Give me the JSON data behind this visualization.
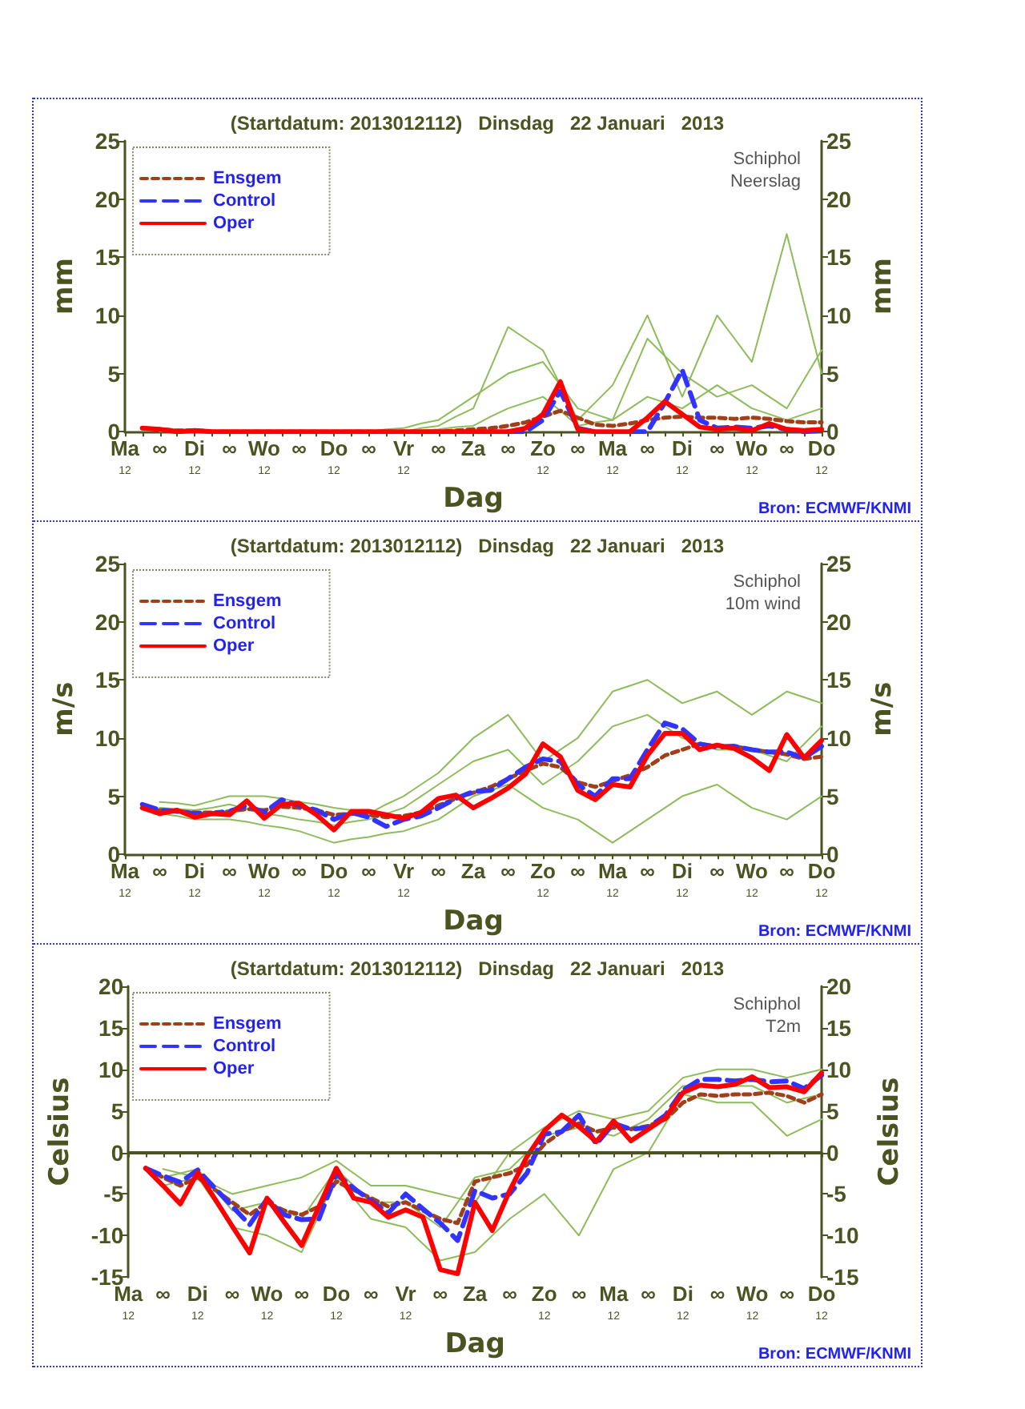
{
  "chart_data": [
    {
      "type": "line",
      "title": "(Startdatum: 2013012112)   Dinsdag   22 Januari   2013",
      "xlabel": "Dag",
      "ylabel": "mm",
      "y2label": "mm",
      "annotations": [
        "Schiphol",
        "Neerslag",
        "Bron: ECMWF/KNMI"
      ],
      "categories": [
        "Ma\n12",
        null,
        "∞",
        null,
        "Di\n12",
        null,
        "∞",
        null,
        "Wo\n12",
        null,
        "∞",
        null,
        "Do\n12",
        null,
        "∞",
        null,
        "Vr\n12",
        null,
        "∞",
        null,
        "Za",
        null,
        "∞",
        null,
        "Zo\n12",
        null,
        "∞",
        null,
        "Ma\n12",
        null,
        "∞",
        null,
        "Di\n12",
        null,
        "∞",
        null,
        "Wo\n12",
        null,
        "∞",
        null,
        "Do\n12"
      ],
      "ylim": [
        0,
        25
      ],
      "yticks": [
        0,
        5,
        10,
        15,
        20,
        25
      ],
      "y2lim": [
        0,
        25
      ],
      "y2ticks": [
        0,
        5,
        10,
        15,
        20,
        25
      ],
      "grid": false,
      "legend": "top left",
      "series": [
        {
          "color": "#8fbc5a",
          "line_style": "solid",
          "values": [
            null,
            null,
            0.3,
            0.2,
            0.1,
            0,
            0,
            0,
            0,
            0,
            0,
            0,
            0,
            0,
            0,
            0,
            0,
            0.3,
            0.5,
            1.3,
            2,
            5.5,
            9,
            8,
            7,
            4,
            1,
            2.5,
            4,
            7,
            10,
            6.5,
            3,
            6.5,
            10,
            8,
            6,
            11.5,
            17,
            11,
            5
          ]
        },
        {
          "color": "#8fbc5a",
          "line_style": "solid",
          "values": [
            null,
            null,
            0.2,
            0.1,
            0,
            0,
            0,
            0,
            0,
            0,
            0,
            0,
            0,
            0,
            0,
            0.2,
            0.3,
            0.7,
            1,
            2,
            3,
            4,
            5,
            5.5,
            6,
            4,
            2,
            1.5,
            1,
            4.5,
            8,
            6.5,
            5,
            4,
            3,
            3.5,
            4,
            3,
            2,
            4.5,
            7
          ]
        },
        {
          "color": "#8fbc5a",
          "line_style": "solid",
          "values": [
            null,
            null,
            0,
            0,
            0,
            0,
            0,
            0,
            0,
            0,
            0,
            0,
            0,
            0,
            0,
            0,
            0,
            0.1,
            0.2,
            0.4,
            0.5,
            1.3,
            2,
            2.5,
            3,
            1.8,
            0.5,
            0.8,
            1,
            2,
            3,
            2.5,
            2,
            3,
            4,
            3,
            2,
            1.5,
            1,
            1.5,
            2
          ]
        },
        {
          "name": "Ensgem",
          "color": "#a0401a",
          "line_style": "dotted",
          "values": [
            null,
            0.3,
            0.2,
            0.1,
            0.1,
            0,
            0,
            0,
            0,
            0,
            0,
            0,
            0,
            0,
            0,
            0,
            0,
            0,
            0,
            0.1,
            0.2,
            0.3,
            0.5,
            0.8,
            1.3,
            1.8,
            1.2,
            0.6,
            0.5,
            0.7,
            1.0,
            1.2,
            1.3,
            1.2,
            1.2,
            1.1,
            1.2,
            1.1,
            0.9,
            0.8,
            0.8
          ]
        },
        {
          "name": "Control",
          "color": "#3333ff",
          "line_style": "dashed",
          "values": [
            null,
            null,
            null,
            null,
            null,
            null,
            null,
            null,
            null,
            null,
            null,
            null,
            null,
            null,
            null,
            null,
            null,
            null,
            null,
            null,
            null,
            null,
            0,
            0,
            1,
            3.5,
            0.3,
            0,
            null,
            0,
            0,
            2.5,
            5.3,
            1.0,
            0.3,
            0.4,
            0.3,
            0.5,
            0.2,
            0,
            0.1
          ]
        },
        {
          "name": "Oper",
          "color": "#ff0000",
          "line_style": "solid",
          "values": [
            null,
            0.3,
            0.2,
            0,
            0.1,
            0,
            0,
            0,
            0,
            0,
            0,
            0,
            0,
            0,
            0,
            0,
            0,
            0,
            0,
            0,
            0,
            0,
            0,
            0.3,
            1.5,
            4.3,
            0.2,
            0,
            0,
            0,
            1.2,
            2.6,
            1.5,
            0.4,
            0.2,
            0.3,
            0.1,
            0.7,
            0.2,
            0.1,
            0.2
          ]
        }
      ]
    },
    {
      "type": "line",
      "title": "(Startdatum: 2013012112)   Dinsdag   22 Januari   2013",
      "xlabel": "Dag",
      "ylabel": "m/s",
      "y2label": "m/s",
      "annotations": [
        "Schiphol",
        "10m wind",
        "Bron: ECMWF/KNMI"
      ],
      "categories": [
        "Ma\n12",
        null,
        "∞",
        null,
        "Di\n12",
        null,
        "∞",
        null,
        "Wo\n12",
        null,
        "∞",
        null,
        "Do\n12",
        null,
        "∞",
        null,
        "Vr\n12",
        null,
        "∞",
        null,
        "Za",
        null,
        "∞",
        null,
        "Zo\n12",
        null,
        "∞",
        null,
        "Ma\n12",
        null,
        "∞",
        null,
        "Di\n12",
        null,
        "∞",
        null,
        "Wo\n12",
        null,
        "∞",
        null,
        "Do\n12"
      ],
      "ylim": [
        0,
        25
      ],
      "yticks": [
        0,
        5,
        10,
        15,
        20,
        25
      ],
      "y2lim": [
        0,
        25
      ],
      "y2ticks": [
        0,
        5,
        10,
        15,
        20,
        25
      ],
      "grid": false,
      "legend": "top left",
      "series": [
        {
          "color": "#8fbc5a",
          "line_style": "solid",
          "values": [
            null,
            null,
            4.5,
            4.4,
            4.2,
            4.6,
            5,
            5,
            5,
            4.8,
            4.5,
            4.3,
            4,
            3.8,
            3.5,
            4.3,
            5,
            6,
            7,
            8.5,
            10,
            11,
            12,
            10,
            8,
            9,
            10,
            12,
            14,
            14.5,
            15,
            14,
            13,
            13.5,
            14,
            13,
            12,
            13,
            14,
            13.5,
            13
          ]
        },
        {
          "color": "#8fbc5a",
          "line_style": "solid",
          "values": [
            null,
            null,
            3.5,
            3.3,
            3,
            3,
            3,
            2.8,
            2.5,
            2.3,
            2,
            1.5,
            1,
            1.3,
            1.5,
            1.8,
            2,
            2.5,
            3,
            4,
            5,
            5.5,
            6,
            5,
            4,
            3.5,
            3,
            2,
            1,
            2,
            3,
            4,
            5,
            5.5,
            6,
            5,
            4,
            3.5,
            3,
            4,
            5
          ]
        },
        {
          "color": "#8fbc5a",
          "line_style": "solid",
          "values": [
            null,
            null,
            4,
            3.9,
            3.8,
            4,
            4.3,
            3.9,
            3.5,
            3.3,
            3,
            2.8,
            2.5,
            2.8,
            3,
            3.5,
            4,
            5,
            6,
            7,
            8,
            8.5,
            9,
            7.5,
            6,
            7,
            8,
            9.5,
            11,
            11.5,
            12,
            11,
            10,
            9.5,
            9,
            9,
            9,
            8.5,
            8,
            9.5,
            11
          ]
        },
        {
          "name": "Ensgem",
          "color": "#a0401a",
          "line_style": "dotted",
          "values": [
            null,
            null,
            3.8,
            3.7,
            3.6,
            3.6,
            3.7,
            3.9,
            3.8,
            4.1,
            4.0,
            3.8,
            3.4,
            3.5,
            3.4,
            3.2,
            3.3,
            3.6,
            4.2,
            4.8,
            5.3,
            5.8,
            6.5,
            7.2,
            7.8,
            7.5,
            6.2,
            5.8,
            6.3,
            6.8,
            7.5,
            8.5,
            9.0,
            9.5,
            9.3,
            9.3,
            9.0,
            8.8,
            8.6,
            8.2,
            8.4
          ]
        },
        {
          "name": "Control",
          "color": "#3333ff",
          "line_style": "dashed",
          "values": [
            null,
            4.3,
            3.8,
            3.7,
            3.5,
            3.5,
            3.7,
            4.2,
            3.6,
            4.7,
            4.2,
            3.8,
            3.0,
            3.6,
            3.2,
            2.4,
            3.0,
            3.3,
            4.0,
            4.8,
            5.4,
            5.5,
            6.5,
            7.5,
            8.2,
            8.0,
            6.0,
            5.0,
            6.5,
            6.5,
            9.0,
            11.3,
            10.8,
            9.5,
            9.2,
            9.3,
            9.0,
            8.8,
            8.8,
            8.3,
            9.3
          ]
        },
        {
          "name": "Oper",
          "color": "#ff0000",
          "line_style": "solid",
          "values": [
            null,
            4.0,
            3.5,
            3.8,
            3.2,
            3.5,
            3.4,
            4.6,
            3.1,
            4.3,
            4.4,
            3.4,
            2.1,
            3.7,
            3.7,
            3.4,
            3.1,
            3.6,
            4.8,
            5.1,
            4.0,
            4.8,
            5.7,
            6.9,
            9.5,
            8.4,
            5.5,
            4.7,
            6.0,
            5.8,
            8.5,
            10.4,
            10.4,
            9.0,
            9.4,
            9.1,
            8.3,
            7.2,
            10.3,
            8.3,
            9.8
          ]
        }
      ]
    },
    {
      "type": "line",
      "title": "(Startdatum: 2013012112)   Dinsdag   22 Januari   2013",
      "xlabel": "Dag",
      "ylabel": "Celsius",
      "y2label": "Celsius",
      "annotations": [
        "Schiphol",
        "T2m",
        "Bron: ECMWF/KNMI"
      ],
      "categories": [
        "Ma\n12",
        null,
        "∞",
        null,
        "Di\n12",
        null,
        "∞",
        null,
        "Wo\n12",
        null,
        "∞",
        null,
        "Do\n12",
        null,
        "∞",
        null,
        "Vr\n12",
        null,
        "∞",
        null,
        "Za",
        null,
        "∞",
        null,
        "Zo\n12",
        null,
        "∞",
        null,
        "Ma\n12",
        null,
        "∞",
        null,
        "Di\n12",
        null,
        "∞",
        null,
        "Wo\n12",
        null,
        "∞",
        null,
        "Do\n12"
      ],
      "ylim": [
        -15,
        20
      ],
      "yticks": [
        -15,
        -10,
        -5,
        0,
        5,
        10,
        15,
        20
      ],
      "y2lim": [
        -15,
        20
      ],
      "y2ticks": [
        -15,
        -10,
        -5,
        0,
        5,
        10,
        15,
        20
      ],
      "grid": false,
      "legend": "top left",
      "ref_lines": [
        {
          "axis": "y",
          "value": 0,
          "color": "#4b5320"
        }
      ],
      "series": [
        {
          "color": "#8fbc5a",
          "line_style": "solid",
          "values": [
            null,
            null,
            -2,
            -2.5,
            -3,
            -4,
            -5,
            -4.5,
            -4,
            -3.5,
            -3,
            -2,
            -1,
            -2.5,
            -4,
            -4,
            -4,
            -4.5,
            -5,
            -5.5,
            -6,
            -3,
            0,
            1.5,
            3,
            4,
            5,
            4.5,
            4,
            4.5,
            5,
            7,
            9,
            9.5,
            10,
            10,
            10,
            9.5,
            9,
            9.5,
            10
          ]
        },
        {
          "color": "#8fbc5a",
          "line_style": "solid",
          "values": [
            null,
            null,
            -4,
            -3.5,
            -3,
            -6,
            -9,
            -9.5,
            -10,
            -11,
            -12,
            -7.5,
            -3,
            -5.5,
            -8,
            -8.5,
            -9,
            -11,
            -13,
            -12.5,
            -12,
            -10,
            -8,
            -6.5,
            -5,
            -7.5,
            -10,
            -6,
            -2,
            -1,
            0,
            3.5,
            7,
            6.5,
            6,
            6,
            6,
            4,
            2,
            3,
            4
          ]
        },
        {
          "color": "#8fbc5a",
          "line_style": "solid",
          "values": [
            null,
            null,
            -3,
            -2.5,
            -2,
            -4.5,
            -7,
            -6.5,
            -6,
            -7,
            -8,
            -5,
            -2,
            -4,
            -6,
            -6,
            -6,
            -7.5,
            -9,
            -6,
            -3,
            -2.5,
            -2,
            0,
            2,
            2.5,
            3,
            2.5,
            2,
            3,
            4,
            6,
            8,
            8,
            8,
            8,
            8,
            7,
            6,
            6.5,
            7
          ]
        },
        {
          "name": "Ensgem",
          "color": "#a0401a",
          "line_style": "dotted",
          "values": [
            null,
            -2,
            -3,
            -4,
            -3,
            -4.5,
            -6,
            -7.5,
            -6,
            -7,
            -7.5,
            -6.5,
            -3.5,
            -4.5,
            -5.5,
            -6.5,
            -6,
            -7,
            -8,
            -8.5,
            -3.5,
            -3,
            -2.5,
            -1.5,
            1,
            2.5,
            3.5,
            2.5,
            3,
            2.8,
            3.2,
            4,
            6,
            7,
            6.8,
            7,
            7,
            7.2,
            6.8,
            6,
            7
          ]
        },
        {
          "name": "Control",
          "color": "#3333ff",
          "line_style": "dashed",
          "values": [
            null,
            -1.9,
            -2.8,
            -3.6,
            -2.1,
            -4.3,
            -6.5,
            -8.7,
            -5.6,
            -7.5,
            -8.1,
            -8,
            -2.6,
            -4.3,
            -5.8,
            -7.3,
            -5,
            -6.8,
            -8.5,
            -10.6,
            -4.6,
            -5.5,
            -5,
            -2.5,
            2.2,
            2.5,
            4.5,
            1,
            3.5,
            2.8,
            3,
            4.5,
            7.5,
            8.8,
            8.8,
            8.6,
            8.8,
            8.5,
            8.6,
            7.7,
            9.3
          ]
        },
        {
          "name": "Oper",
          "color": "#ff0000",
          "line_style": "solid",
          "values": [
            null,
            -1.9,
            -4,
            -6.2,
            -2.4,
            -5.6,
            -8.9,
            -12.1,
            -5.5,
            -8.4,
            -11.2,
            -6.5,
            -1.9,
            -5.5,
            -6,
            -7.8,
            -6.9,
            -7.8,
            -14.1,
            -14.6,
            -6,
            -9.4,
            -4.6,
            -0.5,
            2.6,
            4.5,
            3.1,
            1.3,
            3.8,
            1.4,
            2.8,
            4.2,
            7.2,
            8.1,
            7.9,
            8.2,
            9.1,
            7.8,
            7.9,
            7.3,
            9.6
          ]
        }
      ]
    }
  ]
}
